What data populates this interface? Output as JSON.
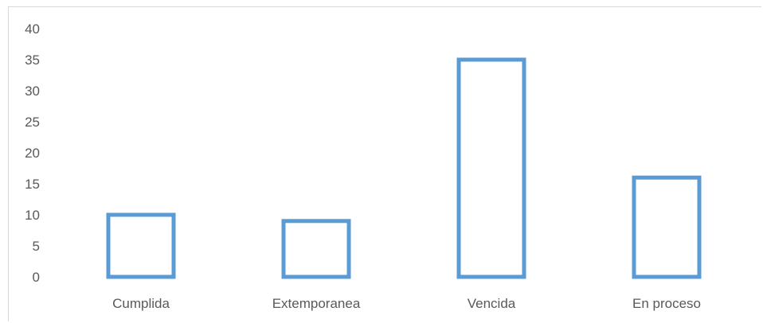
{
  "chart_data": {
    "type": "bar",
    "categories": [
      "Cumplida",
      "Extemporanea",
      "Vencida",
      "En proceso"
    ],
    "values": [
      10,
      9,
      35,
      16
    ],
    "title": "",
    "xlabel": "",
    "ylabel": "",
    "ylim": [
      0,
      40
    ],
    "yticks": [
      0,
      5,
      10,
      15,
      20,
      25,
      30,
      35,
      40
    ],
    "grid": false,
    "legend": "none",
    "bar_style": "outline",
    "bar_color": "#5b9bd5"
  }
}
